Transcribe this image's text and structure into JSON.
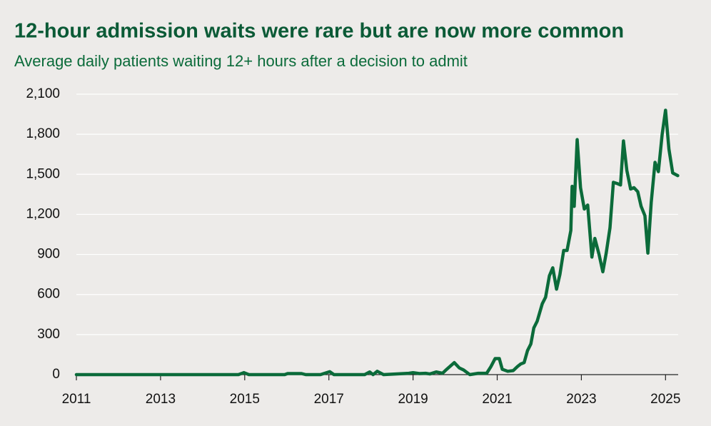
{
  "chart_data": {
    "type": "line",
    "title": "12-hour admission waits were rare but are now more common",
    "subtitle": "Average daily patients waiting 12+ hours after a decision to admit",
    "color": "#0b6b3a",
    "x": [
      2011,
      2014.85,
      2014.98,
      2015.1,
      2015.95,
      2016.02,
      2016.35,
      2016.45,
      2016.8,
      2016.9,
      2017.02,
      2017.12,
      2017.85,
      2017.97,
      2018.05,
      2018.15,
      2018.3,
      2018.9,
      2019.0,
      2019.15,
      2019.3,
      2019.4,
      2019.55,
      2019.7,
      2019.8,
      2019.98,
      2020.1,
      2020.2,
      2020.35,
      2020.55,
      2020.75,
      2020.85,
      2020.95,
      2021.05,
      2021.12,
      2021.25,
      2021.38,
      2021.48,
      2021.56,
      2021.64,
      2021.72,
      2021.8,
      2021.87,
      2021.95,
      2022.07,
      2022.15,
      2022.24,
      2022.32,
      2022.41,
      2022.49,
      2022.58,
      2022.66,
      2022.75,
      2022.78,
      2022.83,
      2022.9,
      2022.98,
      2023.07,
      2023.15,
      2023.25,
      2023.32,
      2023.42,
      2023.51,
      2023.59,
      2023.68,
      2023.76,
      2023.86,
      2023.93,
      2024.0,
      2024.08,
      2024.17,
      2024.25,
      2024.34,
      2024.42,
      2024.51,
      2024.58,
      2024.66,
      2024.75,
      2024.83,
      2024.92,
      2025.0,
      2025.08,
      2025.17,
      2025.29
    ],
    "values": [
      0,
      0,
      15,
      0,
      0,
      8,
      8,
      0,
      0,
      10,
      22,
      0,
      0,
      20,
      0,
      25,
      0,
      10,
      15,
      8,
      10,
      5,
      20,
      10,
      40,
      90,
      50,
      35,
      0,
      10,
      10,
      60,
      120,
      120,
      40,
      25,
      30,
      60,
      80,
      90,
      180,
      230,
      350,
      400,
      530,
      580,
      740,
      800,
      640,
      750,
      930,
      930,
      1080,
      1410,
      1260,
      1760,
      1400,
      1240,
      1270,
      880,
      1020,
      900,
      770,
      910,
      1100,
      1440,
      1430,
      1420,
      1750,
      1530,
      1390,
      1400,
      1370,
      1260,
      1190,
      910,
      1290,
      1590,
      1520,
      1800,
      1980,
      1690,
      1510,
      1490
    ],
    "xlim": [
      2011,
      2025.3
    ],
    "xticks": [
      2011,
      2013,
      2015,
      2017,
      2019,
      2021,
      2023,
      2025
    ],
    "ylim": [
      0,
      2100
    ],
    "yticks": [
      0,
      300,
      600,
      900,
      {
        "value": 1200,
        "label": "1,200"
      },
      {
        "value": 1500,
        "label": "1,500"
      },
      {
        "value": 1800,
        "label": "1,800"
      },
      {
        "value": 2100,
        "label": "2,100"
      }
    ],
    "grid": true
  }
}
